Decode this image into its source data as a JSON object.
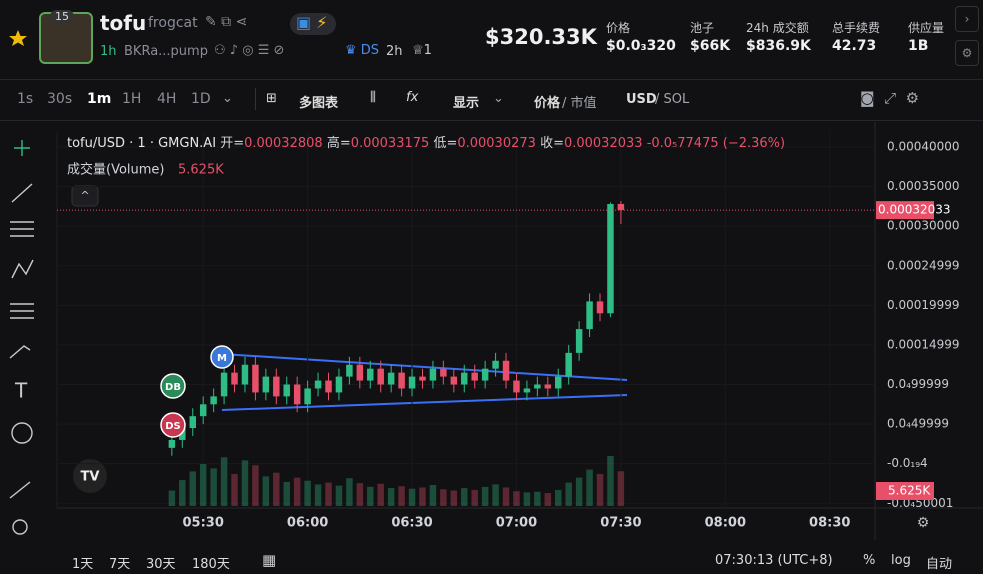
{
  "header": {
    "badge": "15",
    "name": "tofu",
    "ticker": "frogcat",
    "age": "1h",
    "address": "BKRa...pump",
    "ds": "DS",
    "ds_age": "2h",
    "holders": "1",
    "market_cap": "$320.33K",
    "stats": [
      {
        "label": "价格",
        "value": "$0.0₃320"
      },
      {
        "label": "池子",
        "value": "$66K"
      },
      {
        "label": "24h 成交额",
        "value": "$836.9K"
      },
      {
        "label": "总手续费",
        "value": "42.73"
      },
      {
        "label": "供应量",
        "value": "1B"
      }
    ]
  },
  "toolbar": {
    "intervals": [
      "1s",
      "30s",
      "1m",
      "1H",
      "4H",
      "1D"
    ],
    "multi_chart": "多图表",
    "display": "显示",
    "price": "价格",
    "market_value": "/ 市值",
    "usd": "USD",
    "sol": "/ SOL"
  },
  "footer": {
    "ranges": [
      "1天",
      "7天",
      "30天",
      "180天"
    ],
    "clock": "07:30:13 (UTC+8)",
    "percent": "%",
    "log": "log",
    "auto": "自动"
  },
  "chart_data": {
    "type": "candlestick",
    "title": "tofu/USD · 1 · GMGN.AI",
    "ohlc_labels": [
      "开=",
      "高=",
      "低=",
      "收="
    ],
    "change": "-0.0₅77475",
    "change_pct": "(−2.36%)",
    "volume_title": "成交量(Volume)",
    "volume_label": "5.625K",
    "markers": [
      "M",
      "DB",
      "DS"
    ],
    "up_color": "#2ebd85",
    "down_color": "#e8506a",
    "x": [
      "05:21",
      "05:24",
      "05:27",
      "05:30",
      "05:33",
      "05:36",
      "05:39",
      "05:42",
      "05:45",
      "05:48",
      "05:51",
      "05:54",
      "05:57",
      "06:00",
      "06:03",
      "06:06",
      "06:09",
      "06:12",
      "06:15",
      "06:18",
      "06:21",
      "06:24",
      "06:27",
      "06:30",
      "06:33",
      "06:36",
      "06:39",
      "06:42",
      "06:45",
      "06:48",
      "06:51",
      "06:54",
      "06:57",
      "07:00",
      "07:03",
      "07:06",
      "07:09",
      "07:12",
      "07:15",
      "07:18",
      "07:21",
      "07:24",
      "07:27",
      "07:30"
    ],
    "open": [
      2e-05,
      3e-05,
      4.5e-05,
      6e-05,
      7.5e-05,
      8.5e-05,
      0.000115,
      0.0001,
      0.000125,
      9e-05,
      0.00011,
      8.5e-05,
      0.0001,
      7.5e-05,
      9.5e-05,
      0.000105,
      9e-05,
      0.00011,
      0.000125,
      0.000105,
      0.00012,
      0.0001,
      0.000115,
      9.5e-05,
      0.00011,
      0.000105,
      0.00012,
      0.00011,
      0.0001,
      0.000115,
      0.000105,
      0.00012,
      0.00013,
      0.000105,
      9e-05,
      9.5e-05,
      0.0001,
      9.5e-05,
      0.00011,
      0.00014,
      0.00017,
      0.000205,
      0.00019,
      0.00032808
    ],
    "high": [
      4e-05,
      5.5e-05,
      7e-05,
      8.5e-05,
      9.5e-05,
      0.000125,
      0.000125,
      0.000135,
      0.000135,
      0.00012,
      0.00012,
      0.00011,
      0.00011,
      0.000105,
      0.000115,
      0.000115,
      0.00012,
      0.000135,
      0.000135,
      0.00013,
      0.00013,
      0.000125,
      0.000125,
      0.00012,
      0.00012,
      0.00013,
      0.00013,
      0.00012,
      0.000125,
      0.000125,
      0.00013,
      0.00014,
      0.00014,
      0.000115,
      0.000105,
      0.00011,
      0.00011,
      0.00012,
      0.00015,
      0.00018,
      0.000215,
      0.000215,
      0.00033,
      0.00033175
    ],
    "low": [
      1e-05,
      2e-05,
      3.5e-05,
      5e-05,
      6.5e-05,
      7.5e-05,
      9e-05,
      9e-05,
      8e-05,
      8e-05,
      7.5e-05,
      7.5e-05,
      6.5e-05,
      6.5e-05,
      8.5e-05,
      8e-05,
      8e-05,
      0.0001,
      9.5e-05,
      9.5e-05,
      9e-05,
      9e-05,
      8.5e-05,
      8.5e-05,
      9.5e-05,
      9.5e-05,
      0.0001,
      9e-05,
      9e-05,
      9.5e-05,
      9.5e-05,
      0.00011,
      9.5e-05,
      8e-05,
      8e-05,
      8.5e-05,
      8.5e-05,
      8.5e-05,
      0.0001,
      0.00013,
      0.00016,
      0.00018,
      0.000185,
      0.00030273
    ],
    "close": [
      3e-05,
      4.5e-05,
      6e-05,
      7.5e-05,
      8.5e-05,
      0.000115,
      0.0001,
      0.000125,
      9e-05,
      0.00011,
      8.5e-05,
      0.0001,
      7.5e-05,
      9.5e-05,
      0.000105,
      9e-05,
      0.00011,
      0.000125,
      0.000105,
      0.00012,
      0.0001,
      0.000115,
      9.5e-05,
      0.00011,
      0.000105,
      0.00012,
      0.00011,
      0.0001,
      0.000115,
      0.000105,
      0.00012,
      0.00013,
      0.000105,
      9e-05,
      9.5e-05,
      0.0001,
      9.5e-05,
      0.00011,
      0.00014,
      0.00017,
      0.000205,
      0.00019,
      0.000328,
      0.00032033
    ],
    "volume": [
      2500,
      4200,
      5600,
      6800,
      6100,
      7900,
      5200,
      7400,
      6600,
      4800,
      5400,
      3900,
      4600,
      4100,
      3500,
      3800,
      3300,
      4500,
      3700,
      3100,
      3600,
      2900,
      3200,
      2800,
      3000,
      3400,
      2700,
      2500,
      2900,
      2600,
      3100,
      3500,
      3000,
      2400,
      2200,
      2300,
      2100,
      2600,
      3800,
      4600,
      5900,
      5200,
      8100,
      5625
    ],
    "xlim": [
      "04:48",
      "08:43"
    ],
    "xticks": [
      "05:30",
      "06:00",
      "06:30",
      "07:00",
      "07:30",
      "08:00",
      "08:30"
    ],
    "ylim": [
      -5.6e-05,
      0.000419
    ],
    "yticks": [
      {
        "value": 0.0004,
        "label": "0.00040000"
      },
      {
        "value": 0.00035,
        "label": "0.00035000"
      },
      {
        "value": 0.0003,
        "label": "0.00030000"
      },
      {
        "value": 0.00025,
        "label": "0.00024999"
      },
      {
        "value": 0.0002,
        "label": "0.00019999"
      },
      {
        "value": 0.00015,
        "label": "0.00014999"
      },
      {
        "value": 0.0001,
        "label": "0.0₄99999"
      },
      {
        "value": 5e-05,
        "label": "0.0₄49999"
      },
      {
        "value": 0,
        "label": "-0.0₁₉4"
      },
      {
        "value": -5e-05,
        "label": "-0.0₄50001"
      }
    ],
    "grid": true
  }
}
